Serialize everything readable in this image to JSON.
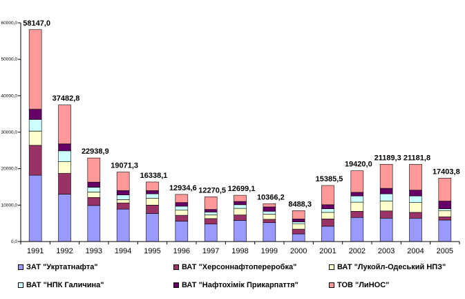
{
  "chart_data": {
    "type": "bar",
    "stacked": true,
    "categories": [
      "1991",
      "1992",
      "1993",
      "1994",
      "1995",
      "1996",
      "1997",
      "1998",
      "1999",
      "2000",
      "2001",
      "2002",
      "2003",
      "2004",
      "2005"
    ],
    "totals": [
      "58147,0",
      "37482,8",
      "22938,9",
      "19071,3",
      "16338,1",
      "12934,6",
      "12270,5",
      "12699,1",
      "10366,2",
      "8488,3",
      "15385,5",
      "19420,0",
      "21189,3",
      "21181,8",
      "17403,8"
    ],
    "yticks": [
      "0,0",
      "10000,0",
      "20000,0",
      "30000,0",
      "40000,0",
      "50000,0",
      "60000,0"
    ],
    "ylim": [
      0,
      60000
    ],
    "grid": false,
    "legend_position": "bottom",
    "series": [
      {
        "name": "ЗАТ \"Укртатнафта\"",
        "color": "#9999ff",
        "values": [
          18200,
          13000,
          9900,
          8900,
          7700,
          5600,
          4800,
          5800,
          5200,
          2100,
          4200,
          6600,
          6400,
          6400,
          5900
        ]
      },
      {
        "name": "ВАТ \"Херсоннафтопереробка\"",
        "color": "#993366",
        "values": [
          8200,
          5700,
          2200,
          1700,
          2300,
          1600,
          1500,
          1500,
          900,
          1300,
          2000,
          1700,
          2000,
          1600,
          900
        ]
      },
      {
        "name": "ВАТ \"Лукойл-Одеський НПЗ\"",
        "color": "#ffffcc",
        "values": [
          3900,
          3200,
          1500,
          900,
          1900,
          1400,
          1000,
          1800,
          1400,
          1500,
          1800,
          2500,
          2700,
          2700,
          1700
        ]
      },
      {
        "name": "ВАТ \"НПК Галичина\"",
        "color": "#ccffff",
        "values": [
          3200,
          3000,
          1300,
          1300,
          1200,
          1100,
          800,
          1000,
          800,
          500,
          1000,
          1700,
          2000,
          1800,
          500
        ]
      },
      {
        "name": "ВАТ \"Нафтохімік Прикарпаття\"",
        "color": "#660066",
        "values": [
          2800,
          1900,
          1400,
          1200,
          900,
          1000,
          700,
          900,
          1200,
          800,
          1100,
          1000,
          1500,
          1600,
          2100
        ]
      },
      {
        "name": "ТОВ \"ЛиНОС\"",
        "color": "#ff9999",
        "values": [
          21847,
          10683,
          6639,
          5071,
          2338,
          2235,
          3471,
          1699,
          866,
          2288,
          5286,
          5920,
          6589,
          7082,
          6304
        ]
      }
    ]
  }
}
